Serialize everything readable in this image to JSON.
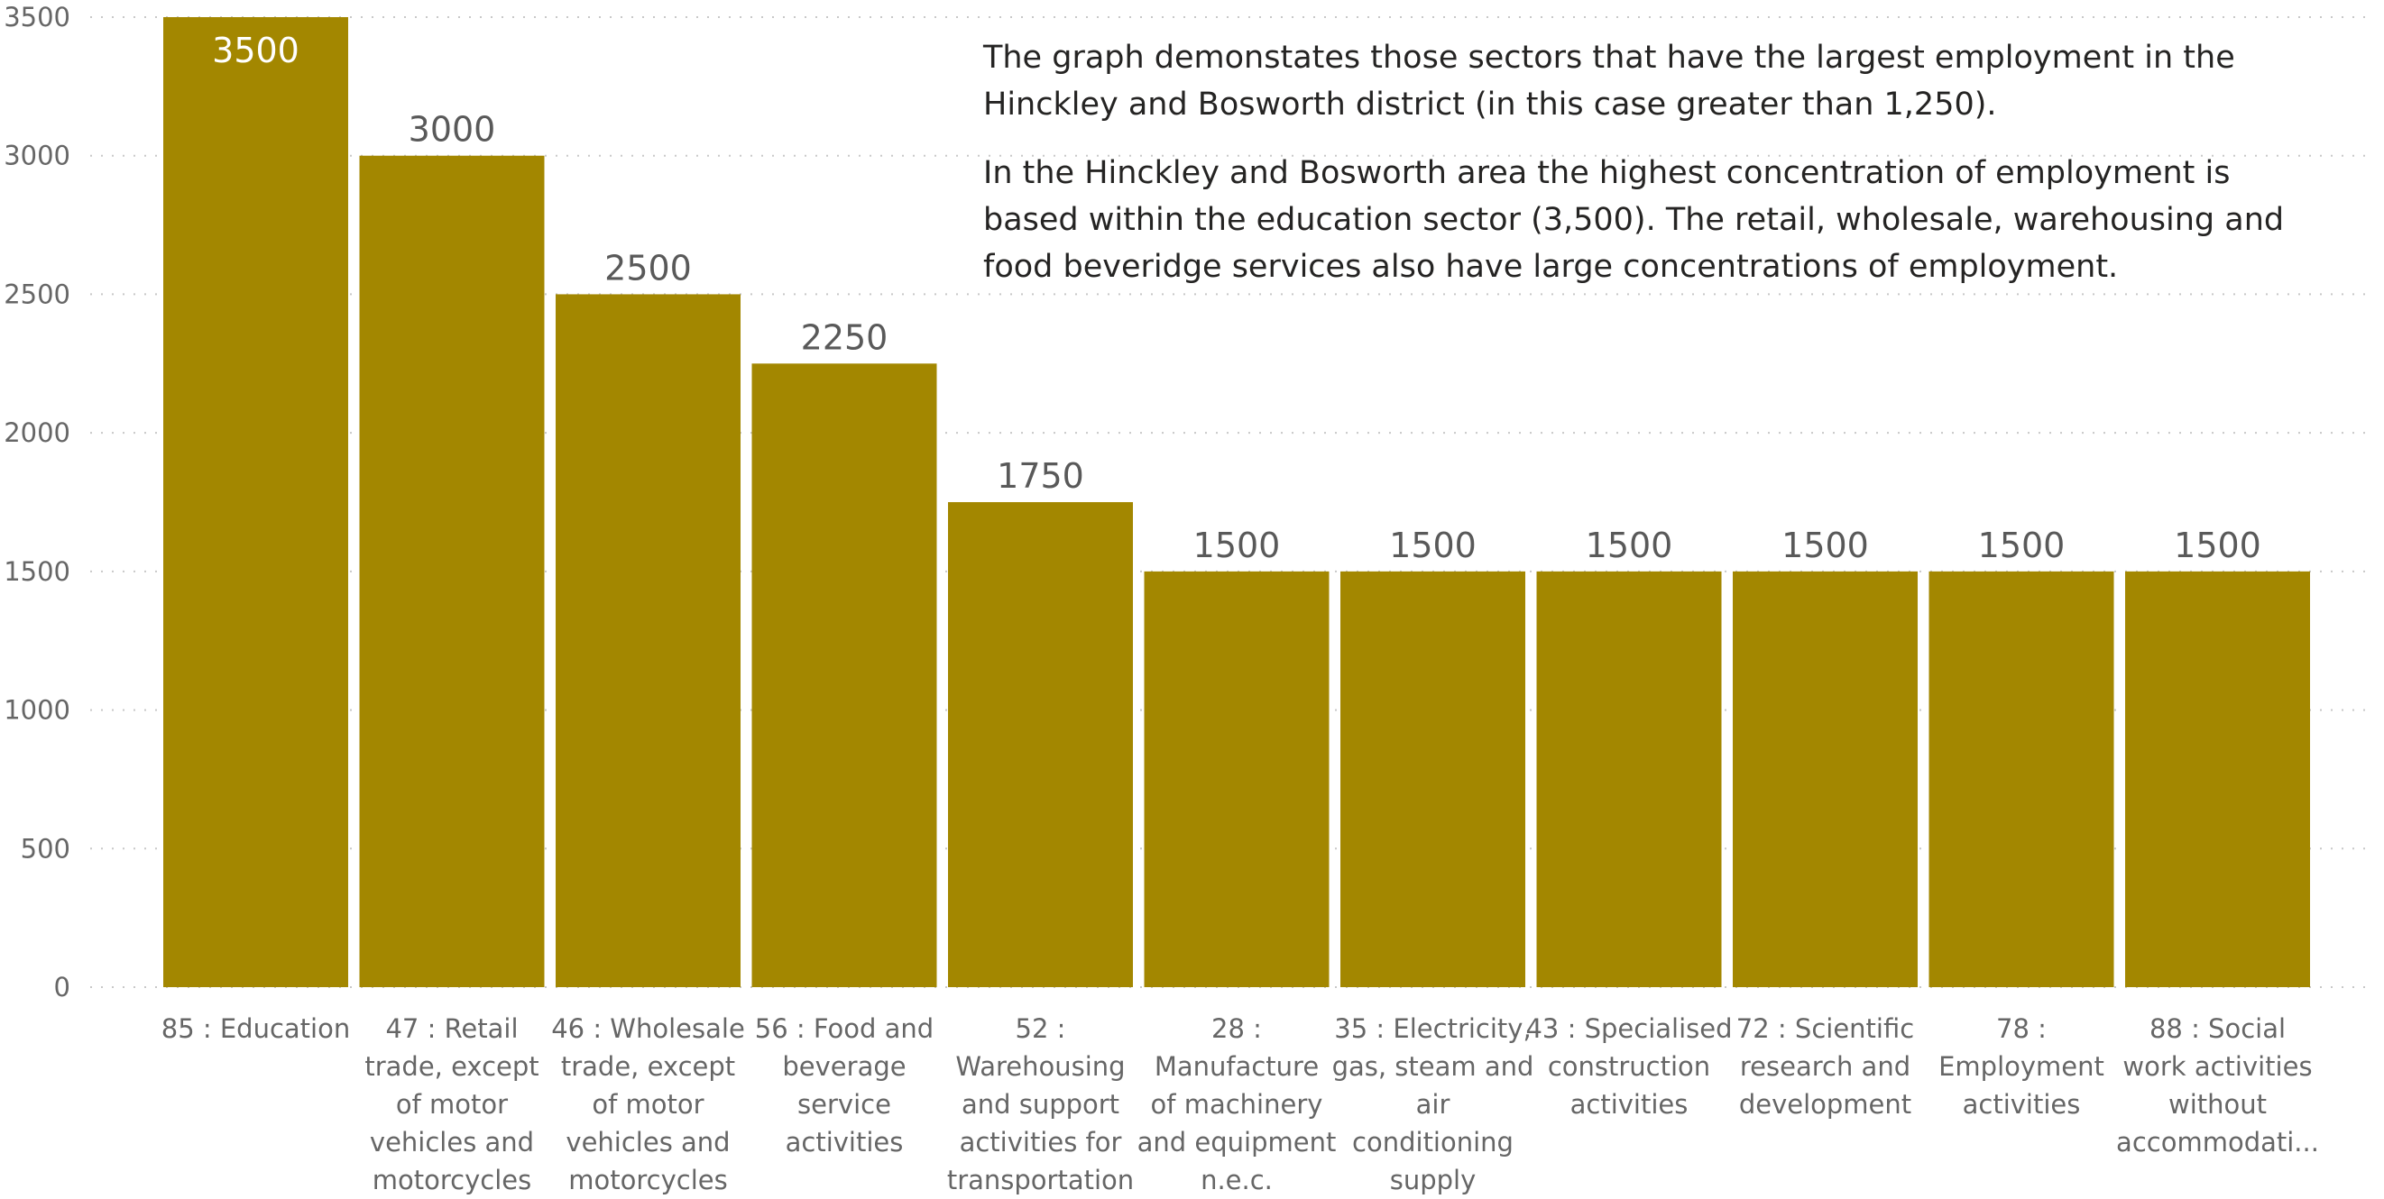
{
  "colors": {
    "bar": "#a38700",
    "grid": "#c8c8c8",
    "label_outside": "#595959",
    "label_inside": "#ffffff"
  },
  "annotation": {
    "paragraph_1": "The graph demonstates those sectors that have the largest employment in the Hinckley and Bosworth district (in this case greater than 1,250).",
    "paragraph_2": "In the Hinckley and Bosworth area the highest concentration of employment is based within the education sector (3,500).  The retail, wholesale, warehousing and food beveridge services also have large concentrations of employment."
  },
  "chart_data": {
    "type": "bar",
    "title": "",
    "xlabel": "",
    "ylabel": "",
    "ylim": [
      0,
      3500
    ],
    "yticks": [
      0,
      500,
      1000,
      1500,
      2000,
      2500,
      3000,
      3500
    ],
    "grid": true,
    "categories": [
      [
        "85 : Education"
      ],
      [
        "47 : Retail",
        "trade, except",
        "of motor",
        "vehicles and",
        "motorcycles"
      ],
      [
        "46 : Wholesale",
        "trade, except",
        "of motor",
        "vehicles and",
        "motorcycles"
      ],
      [
        "56 : Food and",
        "beverage",
        "service",
        "activities"
      ],
      [
        "52 :",
        "Warehousing",
        "and support",
        "activities for",
        "transportation"
      ],
      [
        "28 :",
        "Manufacture",
        "of machinery",
        "and equipment",
        "n.e.c."
      ],
      [
        "35 : Electricity,",
        "gas, steam and",
        "air",
        "conditioning",
        "supply"
      ],
      [
        "43 : Specialised",
        "construction",
        "activities"
      ],
      [
        "72 : Scientific",
        "research and",
        "development"
      ],
      [
        "78 :",
        "Employment",
        "activities"
      ],
      [
        "88 : Social",
        "work activities",
        "without",
        "accommodati..."
      ]
    ],
    "values": [
      3500,
      3000,
      2500,
      2250,
      1750,
      1500,
      1500,
      1500,
      1500,
      1500,
      1500
    ]
  }
}
